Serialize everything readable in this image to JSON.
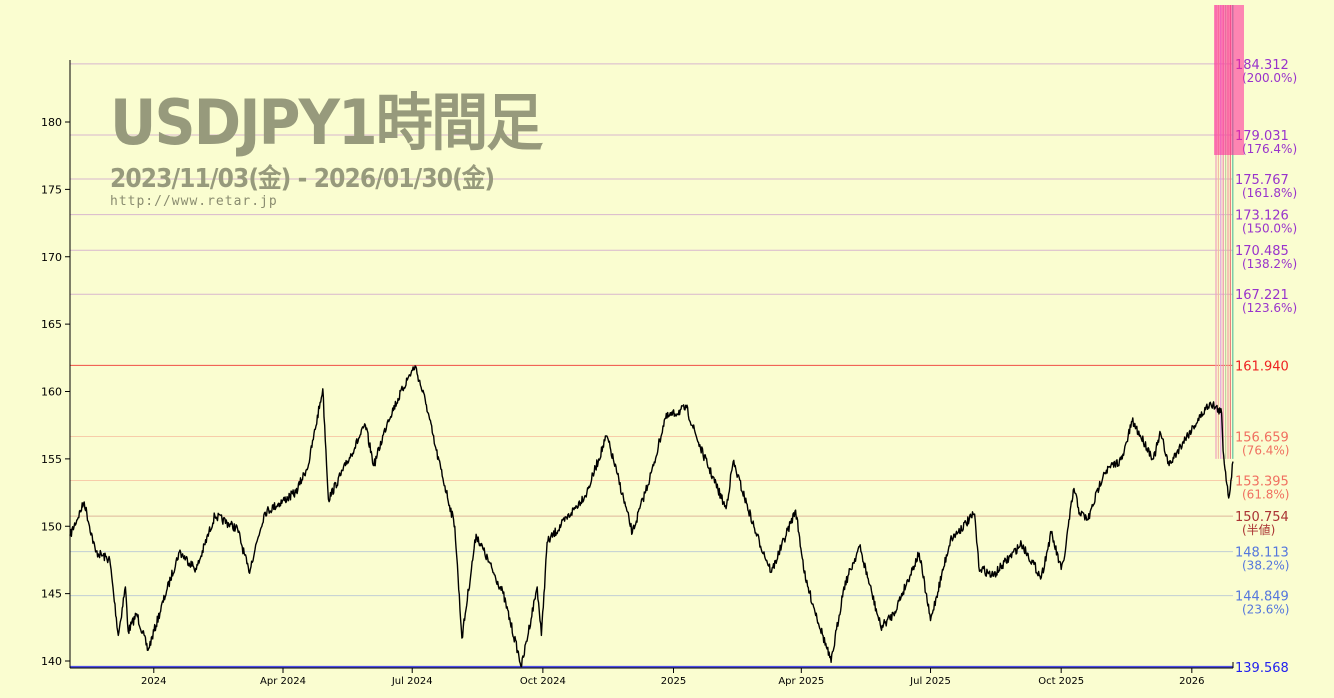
{
  "header": {
    "title": "USDJPY1時間足",
    "date_range": "2023/11/03(金) - 2026/01/30(金)",
    "url": "http://www.retar.jp"
  },
  "chart_data": {
    "type": "line",
    "title": "USDJPY1時間足",
    "ylim": [
      139.4,
      184.6
    ],
    "xlim": [
      "2023-11-03",
      "2026-01-30"
    ],
    "y_ticks": [
      140,
      145,
      150,
      155,
      160,
      165,
      170,
      175,
      180
    ],
    "x_ticks": [
      {
        "date": "2024-01-01",
        "label": "2024"
      },
      {
        "date": "2024-04-01",
        "label": "Apr 2024"
      },
      {
        "date": "2024-07-01",
        "label": "Jul 2024"
      },
      {
        "date": "2024-10-01",
        "label": "Oct 2024"
      },
      {
        "date": "2025-01-01",
        "label": "2025"
      },
      {
        "date": "2025-04-01",
        "label": "Apr 2025"
      },
      {
        "date": "2025-07-01",
        "label": "Jul 2025"
      },
      {
        "date": "2025-10-01",
        "label": "Oct 2025"
      },
      {
        "date": "2026-01-01",
        "label": "2026"
      }
    ],
    "series_color": "#000000",
    "series": [
      {
        "values": [
          [
            "2023-11-03",
            149.3
          ],
          [
            "2023-11-13",
            151.8
          ],
          [
            "2023-11-21",
            148.1
          ],
          [
            "2023-12-01",
            147.5
          ],
          [
            "2023-12-07",
            141.9
          ],
          [
            "2023-12-12",
            145.5
          ],
          [
            "2023-12-14",
            142.2
          ],
          [
            "2023-12-20",
            143.5
          ],
          [
            "2023-12-28",
            140.8
          ],
          [
            "2024-01-10",
            145.2
          ],
          [
            "2024-01-19",
            148.1
          ],
          [
            "2024-01-31",
            146.8
          ],
          [
            "2024-02-13",
            150.8
          ],
          [
            "2024-02-29",
            149.8
          ],
          [
            "2024-03-08",
            146.6
          ],
          [
            "2024-03-19",
            151.0
          ],
          [
            "2024-04-10",
            152.5
          ],
          [
            "2024-04-19",
            154.6
          ],
          [
            "2024-04-29",
            160.2
          ],
          [
            "2024-05-03",
            152.0
          ],
          [
            "2024-05-15",
            154.5
          ],
          [
            "2024-05-29",
            157.5
          ],
          [
            "2024-06-04",
            154.5
          ],
          [
            "2024-06-14",
            157.9
          ],
          [
            "2024-06-28",
            161.0
          ],
          [
            "2024-07-03",
            161.9
          ],
          [
            "2024-07-11",
            159.0
          ],
          [
            "2024-07-17",
            156.0
          ],
          [
            "2024-07-31",
            150.0
          ],
          [
            "2024-08-05",
            141.7
          ],
          [
            "2024-08-15",
            149.4
          ],
          [
            "2024-09-03",
            145.0
          ],
          [
            "2024-09-16",
            139.6
          ],
          [
            "2024-09-27",
            145.5
          ],
          [
            "2024-09-30",
            141.9
          ],
          [
            "2024-10-04",
            148.8
          ],
          [
            "2024-10-21",
            151.0
          ],
          [
            "2024-11-01",
            152.5
          ],
          [
            "2024-11-15",
            156.7
          ],
          [
            "2024-11-22",
            154.0
          ],
          [
            "2024-12-03",
            149.5
          ],
          [
            "2024-12-18",
            154.5
          ],
          [
            "2024-12-26",
            158.0
          ],
          [
            "2025-01-10",
            158.8
          ],
          [
            "2025-01-20",
            155.8
          ],
          [
            "2025-02-07",
            151.3
          ],
          [
            "2025-02-12",
            154.8
          ],
          [
            "2025-02-28",
            149.5
          ],
          [
            "2025-03-11",
            146.6
          ],
          [
            "2025-03-28",
            151.2
          ],
          [
            "2025-04-04",
            146.0
          ],
          [
            "2025-04-22",
            139.9
          ],
          [
            "2025-05-01",
            145.5
          ],
          [
            "2025-05-12",
            148.5
          ],
          [
            "2025-05-27",
            142.5
          ],
          [
            "2025-06-05",
            143.5
          ],
          [
            "2025-06-23",
            148.0
          ],
          [
            "2025-07-01",
            143.0
          ],
          [
            "2025-07-15",
            149.0
          ],
          [
            "2025-08-01",
            150.9
          ],
          [
            "2025-08-04",
            147.0
          ],
          [
            "2025-08-14",
            146.3
          ],
          [
            "2025-09-03",
            148.7
          ],
          [
            "2025-09-17",
            146.2
          ],
          [
            "2025-09-24",
            149.5
          ],
          [
            "2025-10-01",
            146.8
          ],
          [
            "2025-10-03",
            147.5
          ],
          [
            "2025-10-06",
            150.0
          ],
          [
            "2025-10-10",
            152.8
          ],
          [
            "2025-10-14",
            151.0
          ],
          [
            "2025-10-20",
            150.5
          ],
          [
            "2025-10-31",
            154.0
          ],
          [
            "2025-11-13",
            155.0
          ],
          [
            "2025-11-20",
            157.8
          ],
          [
            "2025-12-05",
            155.0
          ],
          [
            "2025-12-10",
            156.9
          ],
          [
            "2025-12-16",
            154.5
          ],
          [
            "2025-12-26",
            156.3
          ],
          [
            "2026-01-14",
            159.2
          ],
          [
            "2026-01-22",
            158.4
          ],
          [
            "2026-01-23",
            155.6
          ],
          [
            "2026-01-27",
            152.1
          ],
          [
            "2026-01-30",
            154.8
          ]
        ]
      }
    ],
    "levels": [
      {
        "value": 184.312,
        "label": "184.312",
        "pct": "(200.0%)",
        "color": "#9933cc"
      },
      {
        "value": 179.031,
        "label": "179.031",
        "pct": "(176.4%)",
        "color": "#9933cc"
      },
      {
        "value": 175.767,
        "label": "175.767",
        "pct": "(161.8%)",
        "color": "#9933cc"
      },
      {
        "value": 173.126,
        "label": "173.126",
        "pct": "(150.0%)",
        "color": "#9933cc"
      },
      {
        "value": 170.485,
        "label": "170.485",
        "pct": "(138.2%)",
        "color": "#9933cc"
      },
      {
        "value": 167.221,
        "label": "167.221",
        "pct": "(123.6%)",
        "color": "#9933cc"
      },
      {
        "value": 161.94,
        "label": "161.940",
        "pct": "",
        "color": "#ee2222"
      },
      {
        "value": 156.659,
        "label": "156.659",
        "pct": "(76.4%)",
        "color": "#f07060"
      },
      {
        "value": 153.395,
        "label": "153.395",
        "pct": "(61.8%)",
        "color": "#f07060"
      },
      {
        "value": 150.754,
        "label": "150.754",
        "pct": "(半値)",
        "color": "#aa3333"
      },
      {
        "value": 148.113,
        "label": "148.113",
        "pct": "(38.2%)",
        "color": "#5577dd"
      },
      {
        "value": 144.849,
        "label": "144.849",
        "pct": "(23.6%)",
        "color": "#5577dd"
      },
      {
        "value": 139.568,
        "label": "139.568",
        "pct": "",
        "color": "#2222ee"
      }
    ],
    "grid": false
  }
}
